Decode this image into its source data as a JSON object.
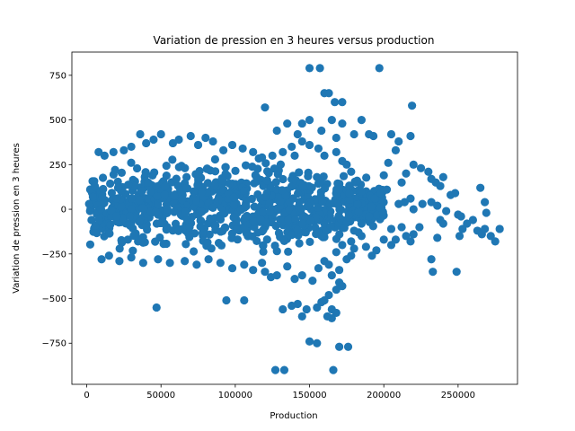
{
  "chart_data": {
    "type": "scatter",
    "title": "Variation de pression en 3 heures versus production",
    "xlabel": "Production",
    "ylabel": "Variation de pression en 3 heures",
    "xlim": [
      -10000,
      290000
    ],
    "ylim": [
      -980,
      880
    ],
    "xticks": [
      0,
      50000,
      100000,
      150000,
      200000,
      250000
    ],
    "xtick_labels": [
      "0",
      "50000",
      "100000",
      "150000",
      "200000",
      "250000"
    ],
    "yticks": [
      -750,
      -500,
      -250,
      0,
      250,
      500,
      750
    ],
    "ytick_labels": [
      "−750",
      "−500",
      "−250",
      "0",
      "250",
      "500",
      "750"
    ],
    "grid": false,
    "marker_color": "#1f77b4",
    "core_cluster": {
      "bands": [
        {
          "x_range": [
            1000,
            15000
          ],
          "y_range": [
            -260,
            240
          ]
        },
        {
          "x_range": [
            15000,
            45000
          ],
          "y_range": [
            -280,
            320
          ]
        },
        {
          "x_range": [
            45000,
            95000
          ],
          "y_range": [
            -280,
            350
          ]
        },
        {
          "x_range": [
            95000,
            140000
          ],
          "y_range": [
            -330,
            330
          ]
        },
        {
          "x_range": [
            140000,
            175000
          ],
          "y_range": [
            -300,
            280
          ]
        },
        {
          "x_range": [
            175000,
            200000
          ],
          "y_range": [
            -150,
            200
          ]
        }
      ]
    },
    "series": [
      {
        "values": [
          [
            150000,
            790
          ],
          [
            157000,
            790
          ],
          [
            197000,
            790
          ],
          [
            160000,
            650
          ],
          [
            163000,
            650
          ],
          [
            120000,
            570
          ],
          [
            167000,
            600
          ],
          [
            172000,
            600
          ],
          [
            219000,
            580
          ],
          [
            135000,
            480
          ],
          [
            145000,
            480
          ],
          [
            150000,
            500
          ],
          [
            165000,
            500
          ],
          [
            172000,
            480
          ],
          [
            180000,
            420
          ],
          [
            190000,
            420
          ],
          [
            128000,
            440
          ],
          [
            138000,
            350
          ],
          [
            142000,
            420
          ],
          [
            158000,
            440
          ],
          [
            168000,
            400
          ],
          [
            185000,
            500
          ],
          [
            193000,
            410
          ],
          [
            205000,
            420
          ],
          [
            210000,
            380
          ],
          [
            218000,
            410
          ],
          [
            220000,
            250
          ],
          [
            215000,
            200
          ],
          [
            225000,
            230
          ],
          [
            208000,
            330
          ],
          [
            203000,
            260
          ],
          [
            200000,
            190
          ],
          [
            212000,
            150
          ],
          [
            230000,
            210
          ],
          [
            232000,
            170
          ],
          [
            235000,
            150
          ],
          [
            240000,
            180
          ],
          [
            238000,
            130
          ],
          [
            232000,
            40
          ],
          [
            236000,
            20
          ],
          [
            242000,
            -10
          ],
          [
            238000,
            -60
          ],
          [
            245000,
            80
          ],
          [
            248000,
            90
          ],
          [
            250000,
            -30
          ],
          [
            252000,
            -40
          ],
          [
            256000,
            -80
          ],
          [
            260000,
            -60
          ],
          [
            263000,
            -120
          ],
          [
            266000,
            -140
          ],
          [
            268000,
            -110
          ],
          [
            272000,
            -150
          ],
          [
            275000,
            -180
          ],
          [
            278000,
            -110
          ],
          [
            265000,
            120
          ],
          [
            268000,
            40
          ],
          [
            269000,
            -20
          ],
          [
            253000,
            -110
          ],
          [
            251000,
            -150
          ],
          [
            240000,
            -80
          ],
          [
            236000,
            -160
          ],
          [
            232000,
            -280
          ],
          [
            233000,
            -350
          ],
          [
            249000,
            -350
          ],
          [
            226000,
            30
          ],
          [
            224000,
            -100
          ],
          [
            220000,
            0
          ],
          [
            218000,
            60
          ],
          [
            214000,
            40
          ],
          [
            210000,
            30
          ],
          [
            205000,
            -110
          ],
          [
            212000,
            -100
          ],
          [
            220000,
            -140
          ],
          [
            215000,
            -150
          ],
          [
            218000,
            -180
          ],
          [
            208000,
            -170
          ],
          [
            205000,
            -200
          ],
          [
            200000,
            -170
          ],
          [
            195000,
            -230
          ],
          [
            192000,
            -260
          ],
          [
            188000,
            -210
          ],
          [
            185000,
            -150
          ],
          [
            183000,
            -130
          ],
          [
            180000,
            -220
          ],
          [
            178000,
            -260
          ],
          [
            175000,
            -280
          ],
          [
            170000,
            -340
          ],
          [
            165000,
            -370
          ],
          [
            170000,
            -410
          ],
          [
            168000,
            -450
          ],
          [
            172000,
            -430
          ],
          [
            163000,
            -480
          ],
          [
            158000,
            -520
          ],
          [
            160000,
            -510
          ],
          [
            165000,
            -560
          ],
          [
            168000,
            -580
          ],
          [
            162000,
            -600
          ],
          [
            165000,
            -610
          ],
          [
            155000,
            -550
          ],
          [
            148000,
            -560
          ],
          [
            142000,
            -530
          ],
          [
            138000,
            -540
          ],
          [
            132000,
            -560
          ],
          [
            145000,
            -600
          ],
          [
            150000,
            -740
          ],
          [
            155000,
            -750
          ],
          [
            170000,
            -770
          ],
          [
            176000,
            -770
          ],
          [
            127000,
            -900
          ],
          [
            133000,
            -900
          ],
          [
            166000,
            -900
          ],
          [
            47000,
            -550
          ],
          [
            94000,
            -510
          ],
          [
            106000,
            -510
          ],
          [
            124000,
            -380
          ],
          [
            128000,
            -370
          ],
          [
            120000,
            -350
          ],
          [
            135000,
            -320
          ],
          [
            140000,
            -390
          ],
          [
            145000,
            -370
          ],
          [
            152000,
            -400
          ],
          [
            156000,
            -330
          ],
          [
            160000,
            -290
          ],
          [
            163000,
            -310
          ],
          [
            168000,
            -240
          ],
          [
            172000,
            -200
          ],
          [
            178000,
            -180
          ],
          [
            180000,
            -120
          ],
          [
            185000,
            -80
          ],
          [
            190000,
            -40
          ],
          [
            194000,
            60
          ],
          [
            198000,
            90
          ],
          [
            202000,
            110
          ],
          [
            185000,
            100
          ],
          [
            182000,
            160
          ],
          [
            178000,
            210
          ],
          [
            175000,
            250
          ],
          [
            172000,
            270
          ],
          [
            168000,
            320
          ],
          [
            160000,
            300
          ],
          [
            156000,
            340
          ],
          [
            150000,
            360
          ],
          [
            145000,
            380
          ],
          [
            140000,
            300
          ],
          [
            132000,
            320
          ],
          [
            125000,
            300
          ],
          [
            118000,
            290
          ],
          [
            112000,
            320
          ],
          [
            105000,
            340
          ],
          [
            98000,
            360
          ],
          [
            92000,
            330
          ],
          [
            85000,
            380
          ],
          [
            80000,
            400
          ],
          [
            75000,
            360
          ],
          [
            70000,
            410
          ],
          [
            62000,
            390
          ],
          [
            58000,
            370
          ],
          [
            50000,
            420
          ],
          [
            45000,
            390
          ],
          [
            40000,
            370
          ],
          [
            36000,
            420
          ],
          [
            30000,
            350
          ],
          [
            25000,
            330
          ],
          [
            18000,
            320
          ],
          [
            12000,
            300
          ],
          [
            8000,
            320
          ],
          [
            10000,
            -280
          ],
          [
            15000,
            -260
          ],
          [
            22000,
            -290
          ],
          [
            30000,
            -270
          ],
          [
            38000,
            -300
          ],
          [
            48000,
            -280
          ],
          [
            56000,
            -300
          ],
          [
            66000,
            -290
          ],
          [
            74000,
            -310
          ],
          [
            82000,
            -280
          ],
          [
            90000,
            -300
          ],
          [
            98000,
            -330
          ],
          [
            106000,
            -310
          ],
          [
            112000,
            -340
          ],
          [
            118000,
            -300
          ]
        ]
      }
    ]
  }
}
